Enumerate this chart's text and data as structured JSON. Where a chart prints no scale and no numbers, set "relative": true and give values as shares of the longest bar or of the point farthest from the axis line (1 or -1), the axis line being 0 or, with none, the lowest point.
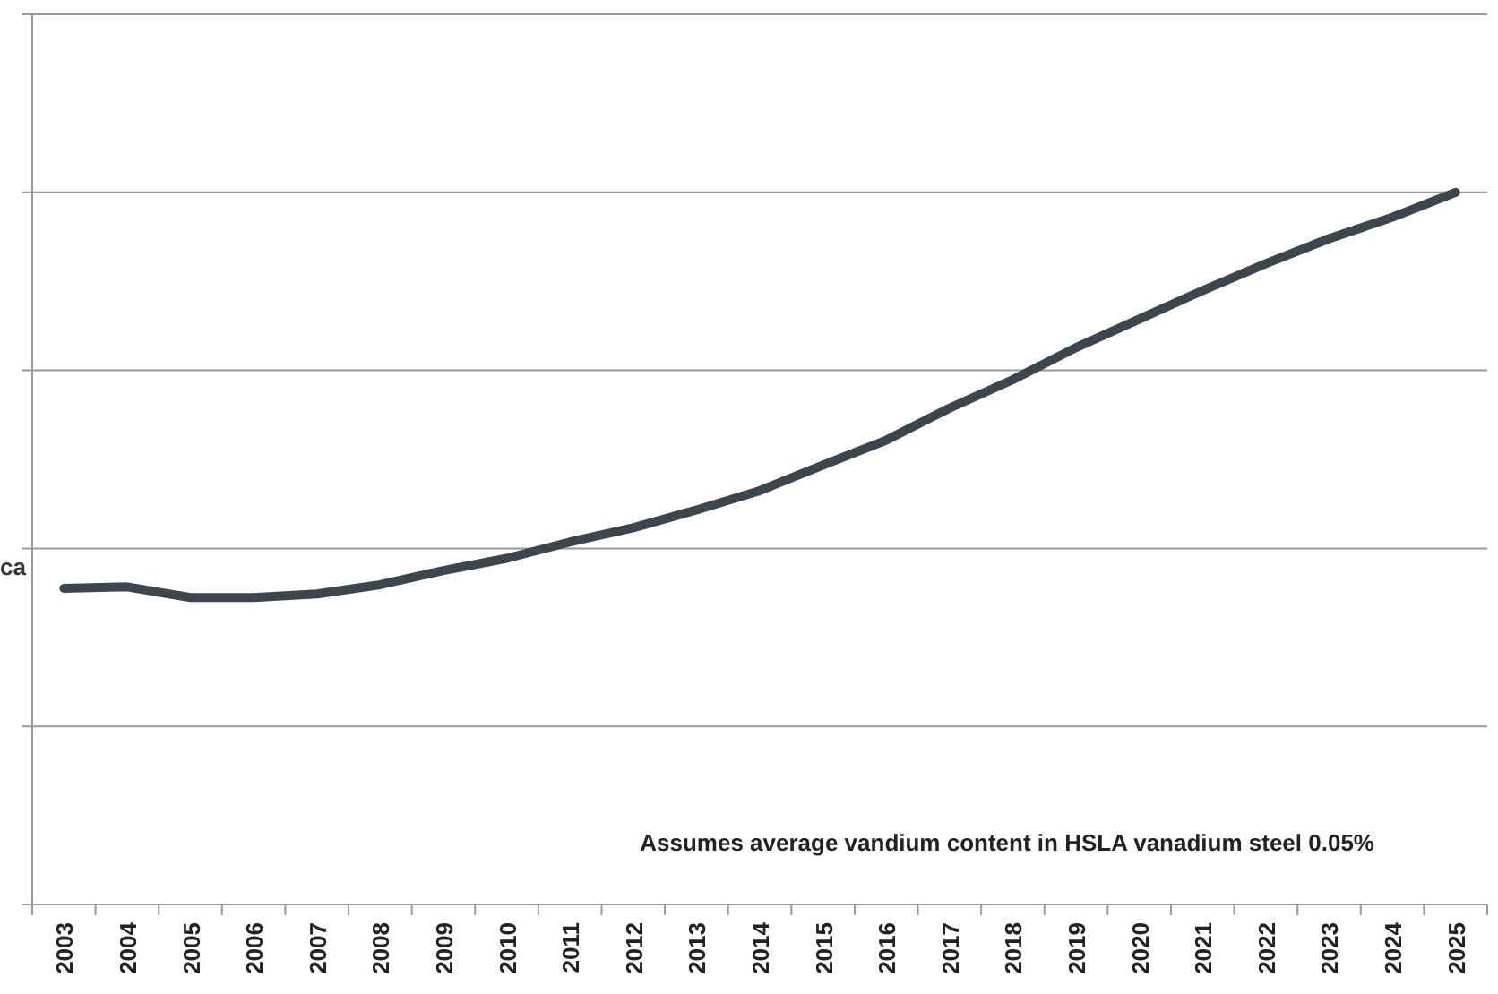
{
  "chart_data": {
    "type": "line",
    "relative": true,
    "ylabel": "ca",
    "grid": "y",
    "categories": [
      "2003",
      "2004",
      "2005",
      "2006",
      "2007",
      "2008",
      "2009",
      "2010",
      "2011",
      "2012",
      "2013",
      "2014",
      "2015",
      "2016",
      "2017",
      "2018",
      "2019",
      "2020",
      "2021",
      "2022",
      "2023",
      "2024",
      "2025"
    ],
    "series": [
      {
        "color": "#3d464d",
        "values": [
          0.444,
          0.446,
          0.431,
          0.431,
          0.436,
          0.449,
          0.469,
          0.486,
          0.509,
          0.529,
          0.554,
          0.581,
          0.617,
          0.652,
          0.697,
          0.737,
          0.782,
          0.822,
          0.862,
          0.9,
          0.935,
          0.965,
          1
        ]
      }
    ],
    "annotations": [
      "Assumes average vandium content in HSLA vanadium steel 0.05%"
    ]
  }
}
